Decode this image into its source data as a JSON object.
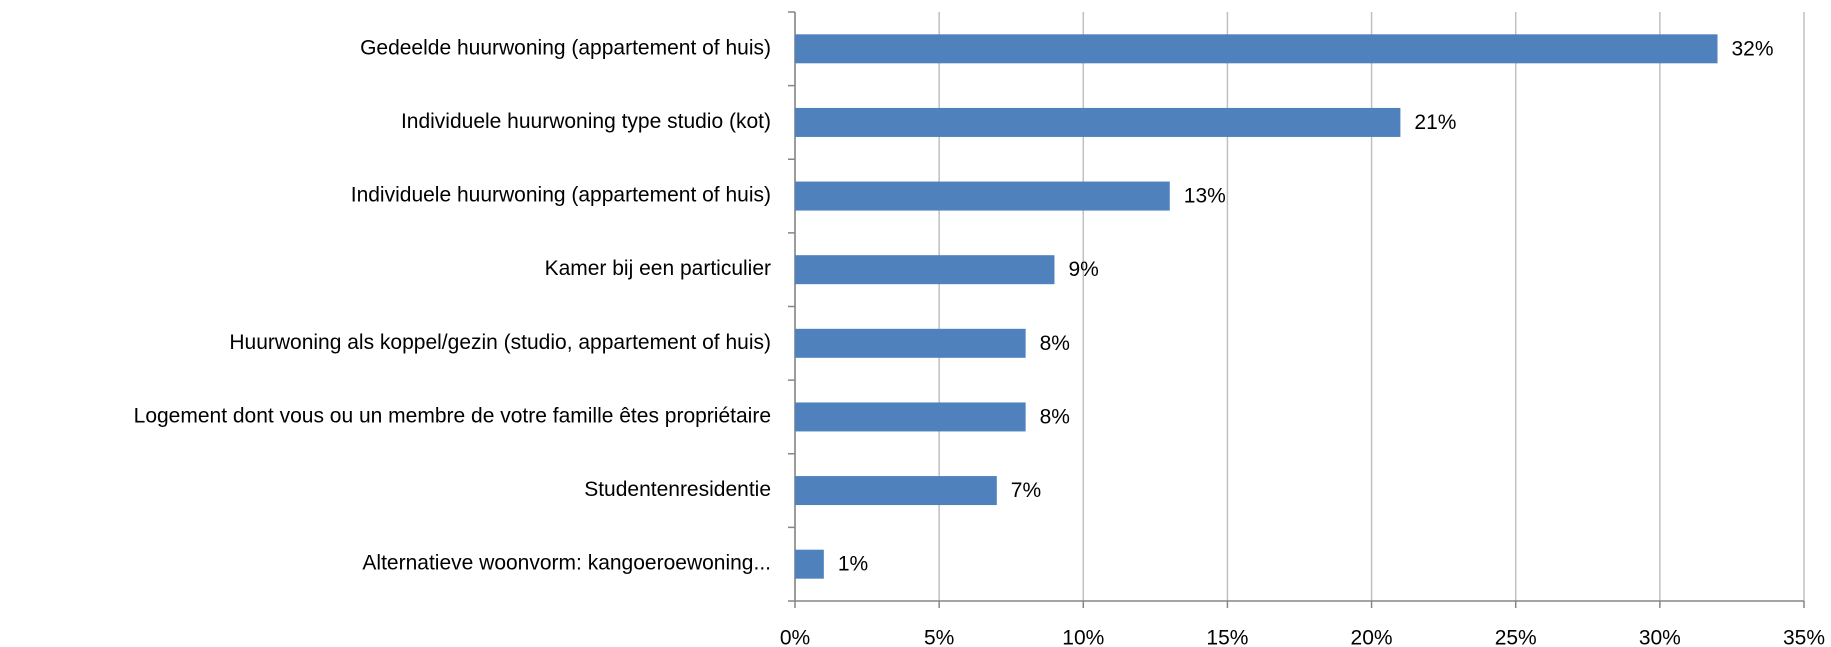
{
  "chart_data": {
    "type": "bar",
    "orientation": "horizontal",
    "categories": [
      "Gedeelde huurwoning (appartement of huis)",
      "Individuele huurwoning type studio (kot)",
      "Individuele huurwoning (appartement of huis)",
      "Kamer bij een particulier",
      "Huurwoning als koppel/gezin (studio, appartement of huis)",
      "Logement dont vous ou un membre de votre famille êtes propriétaire",
      "Studentenresidentie",
      "Alternatieve woonvorm: kangoeroewoning..."
    ],
    "values": [
      32,
      21,
      13,
      9,
      8,
      8,
      7,
      1
    ],
    "value_labels": [
      "32%",
      "21%",
      "13%",
      "9%",
      "8%",
      "8%",
      "7%",
      "1%"
    ],
    "color": "#4f81bd",
    "xlim": [
      0,
      35
    ],
    "xticks": [
      {
        "value": 0,
        "label": "0%"
      },
      {
        "value": 5,
        "label": "5%"
      },
      {
        "value": 10,
        "label": "10%"
      },
      {
        "value": 15,
        "label": "15%"
      },
      {
        "value": 20,
        "label": "20%"
      },
      {
        "value": 25,
        "label": "25%"
      },
      {
        "value": 30,
        "label": "30%"
      },
      {
        "value": 35,
        "label": "35%"
      }
    ],
    "grid": true
  }
}
